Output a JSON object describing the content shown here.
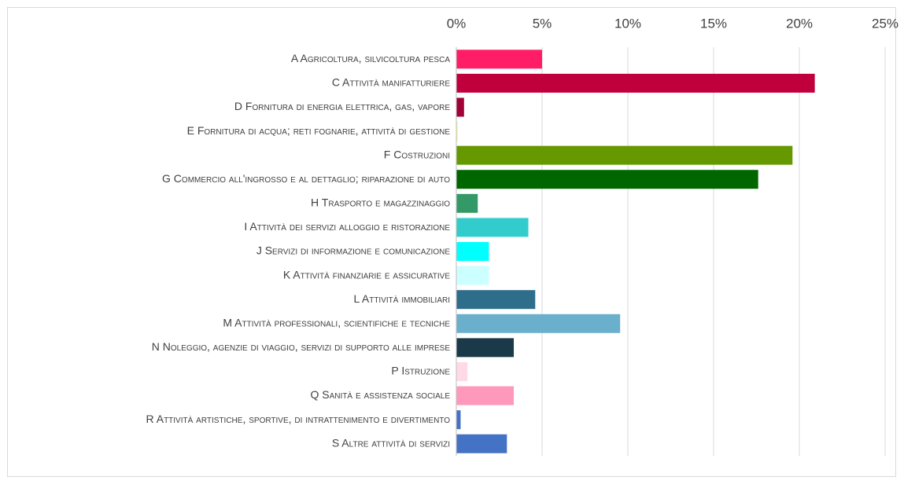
{
  "chart_data": {
    "type": "hbar",
    "categories": [
      "A Agricoltura, silvicoltura pesca",
      "C Attività manifatturiere",
      "D Fornitura di energia elettrica, gas, vapore",
      "E Fornitura di acqua; reti fognarie, attività di gestione",
      "F Costruzioni",
      "G Commercio all'ingrosso e al dettaglio; riparazione di auto",
      "H Trasporto e magazzinaggio",
      "I Attività dei servizi alloggio e ristorazione",
      "J Servizi di informazione e comunicazione",
      "K Attività finanziarie e assicurative",
      "L Attività immobiliari",
      "M Attività professionali, scientifiche e tecniche",
      "N Noleggio, agenzie di viaggio, servizi di supporto alle imprese",
      "P Istruzione",
      "Q Sanità e assistenza sociale",
      "R Attività artistiche, sportive, di intrattenimento e divertimento",
      "S Altre attività di servizi"
    ],
    "values": [
      5.0,
      20.9,
      0.45,
      0.05,
      19.6,
      17.6,
      1.25,
      4.2,
      1.9,
      1.9,
      4.6,
      9.55,
      3.35,
      0.65,
      3.35,
      0.25,
      2.95
    ],
    "colors": [
      "#ff1d68",
      "#c0003c",
      "#a00036",
      "#ffff99",
      "#669900",
      "#006600",
      "#339966",
      "#33cccc",
      "#00ffff",
      "#ccffff",
      "#2e6e8a",
      "#6aafcc",
      "#1a3a4a",
      "#ffd9e6",
      "#ff99bb",
      "#4472c4",
      "#4472c4"
    ],
    "xlim": [
      0,
      25
    ],
    "xticks": [
      {
        "value": 0,
        "label": "0%"
      },
      {
        "value": 5,
        "label": "5%"
      },
      {
        "value": 10,
        "label": "10%"
      },
      {
        "value": 15,
        "label": "15%"
      },
      {
        "value": 20,
        "label": "20%"
      },
      {
        "value": 25,
        "label": "25%"
      }
    ],
    "grid": true
  }
}
